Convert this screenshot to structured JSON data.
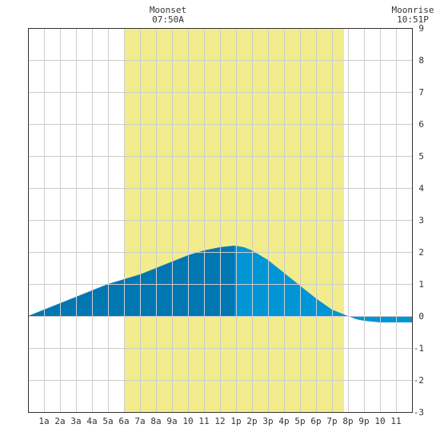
{
  "header": {
    "moonset_label": "Moonset",
    "moonset_time": "07:50A",
    "moonrise_label": "Moonrise",
    "moonrise_time": "10:51P"
  },
  "colors": {
    "daylight": "#f2ec8c",
    "tide_left_of_peak": "#0077b3",
    "tide_right_of_peak": "#0095d6",
    "grid": "#cccccc",
    "axis": "#333333"
  },
  "chart_data": {
    "type": "area",
    "title": "",
    "xlabel": "",
    "ylabel": "",
    "xlim": [
      0,
      24
    ],
    "ylim": [
      -3,
      9
    ],
    "y_ticks": [
      9,
      8,
      7,
      6,
      5,
      4,
      3,
      2,
      1,
      0,
      -1,
      -2,
      -3
    ],
    "x_ticks": [
      {
        "hour": 1,
        "label": "1a"
      },
      {
        "hour": 2,
        "label": "2a"
      },
      {
        "hour": 3,
        "label": "3a"
      },
      {
        "hour": 4,
        "label": "4a"
      },
      {
        "hour": 5,
        "label": "5a"
      },
      {
        "hour": 6,
        "label": "6a"
      },
      {
        "hour": 7,
        "label": "7a"
      },
      {
        "hour": 8,
        "label": "8a"
      },
      {
        "hour": 9,
        "label": "9a"
      },
      {
        "hour": 10,
        "label": "10"
      },
      {
        "hour": 11,
        "label": "11"
      },
      {
        "hour": 12,
        "label": "12"
      },
      {
        "hour": 13,
        "label": "1p"
      },
      {
        "hour": 14,
        "label": "2p"
      },
      {
        "hour": 15,
        "label": "3p"
      },
      {
        "hour": 16,
        "label": "4p"
      },
      {
        "hour": 17,
        "label": "5p"
      },
      {
        "hour": 18,
        "label": "6p"
      },
      {
        "hour": 19,
        "label": "7p"
      },
      {
        "hour": 20,
        "label": "8p"
      },
      {
        "hour": 21,
        "label": "9p"
      },
      {
        "hour": 22,
        "label": "10"
      },
      {
        "hour": 23,
        "label": "11"
      }
    ],
    "daylight_hours": [
      6,
      19.75
    ],
    "peak_hour": 12.9,
    "series": [
      {
        "x": [
          0,
          1,
          2,
          3,
          4,
          5,
          6,
          7,
          8,
          9,
          10,
          11,
          12,
          12.9,
          13.5,
          14,
          15,
          16,
          17,
          18,
          19,
          20,
          20.5,
          21,
          22,
          23,
          24
        ],
        "values": [
          0.0,
          0.2,
          0.4,
          0.6,
          0.8,
          1.0,
          1.15,
          1.3,
          1.5,
          1.7,
          1.9,
          2.05,
          2.15,
          2.2,
          2.15,
          2.05,
          1.75,
          1.35,
          0.95,
          0.55,
          0.2,
          0.0,
          -0.1,
          -0.15,
          -0.2,
          -0.2,
          -0.2
        ]
      }
    ],
    "grid": true
  }
}
